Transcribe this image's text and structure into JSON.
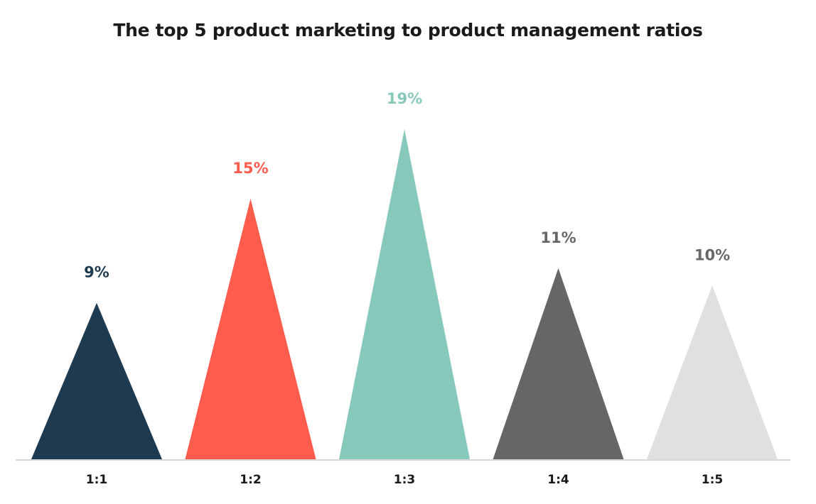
{
  "chart_data": {
    "type": "bar",
    "shape": "triangle",
    "title": "The top 5 product marketing to product management ratios",
    "xlabel": "",
    "ylabel": "",
    "categories": [
      "1:1",
      "1:2",
      "1:3",
      "1:4",
      "1:5"
    ],
    "values": [
      9,
      15,
      19,
      11,
      10
    ],
    "value_labels": [
      "9%",
      "15%",
      "19%",
      "11%",
      "10%"
    ],
    "unit": "%",
    "ylim": [
      0,
      19
    ],
    "grid": false,
    "legend": "none",
    "colors": [
      "#1e3a50",
      "#ff5c4d",
      "#86c9bb",
      "#666666",
      "#e0e0e0"
    ],
    "axis_color": "#d9d9d9"
  }
}
